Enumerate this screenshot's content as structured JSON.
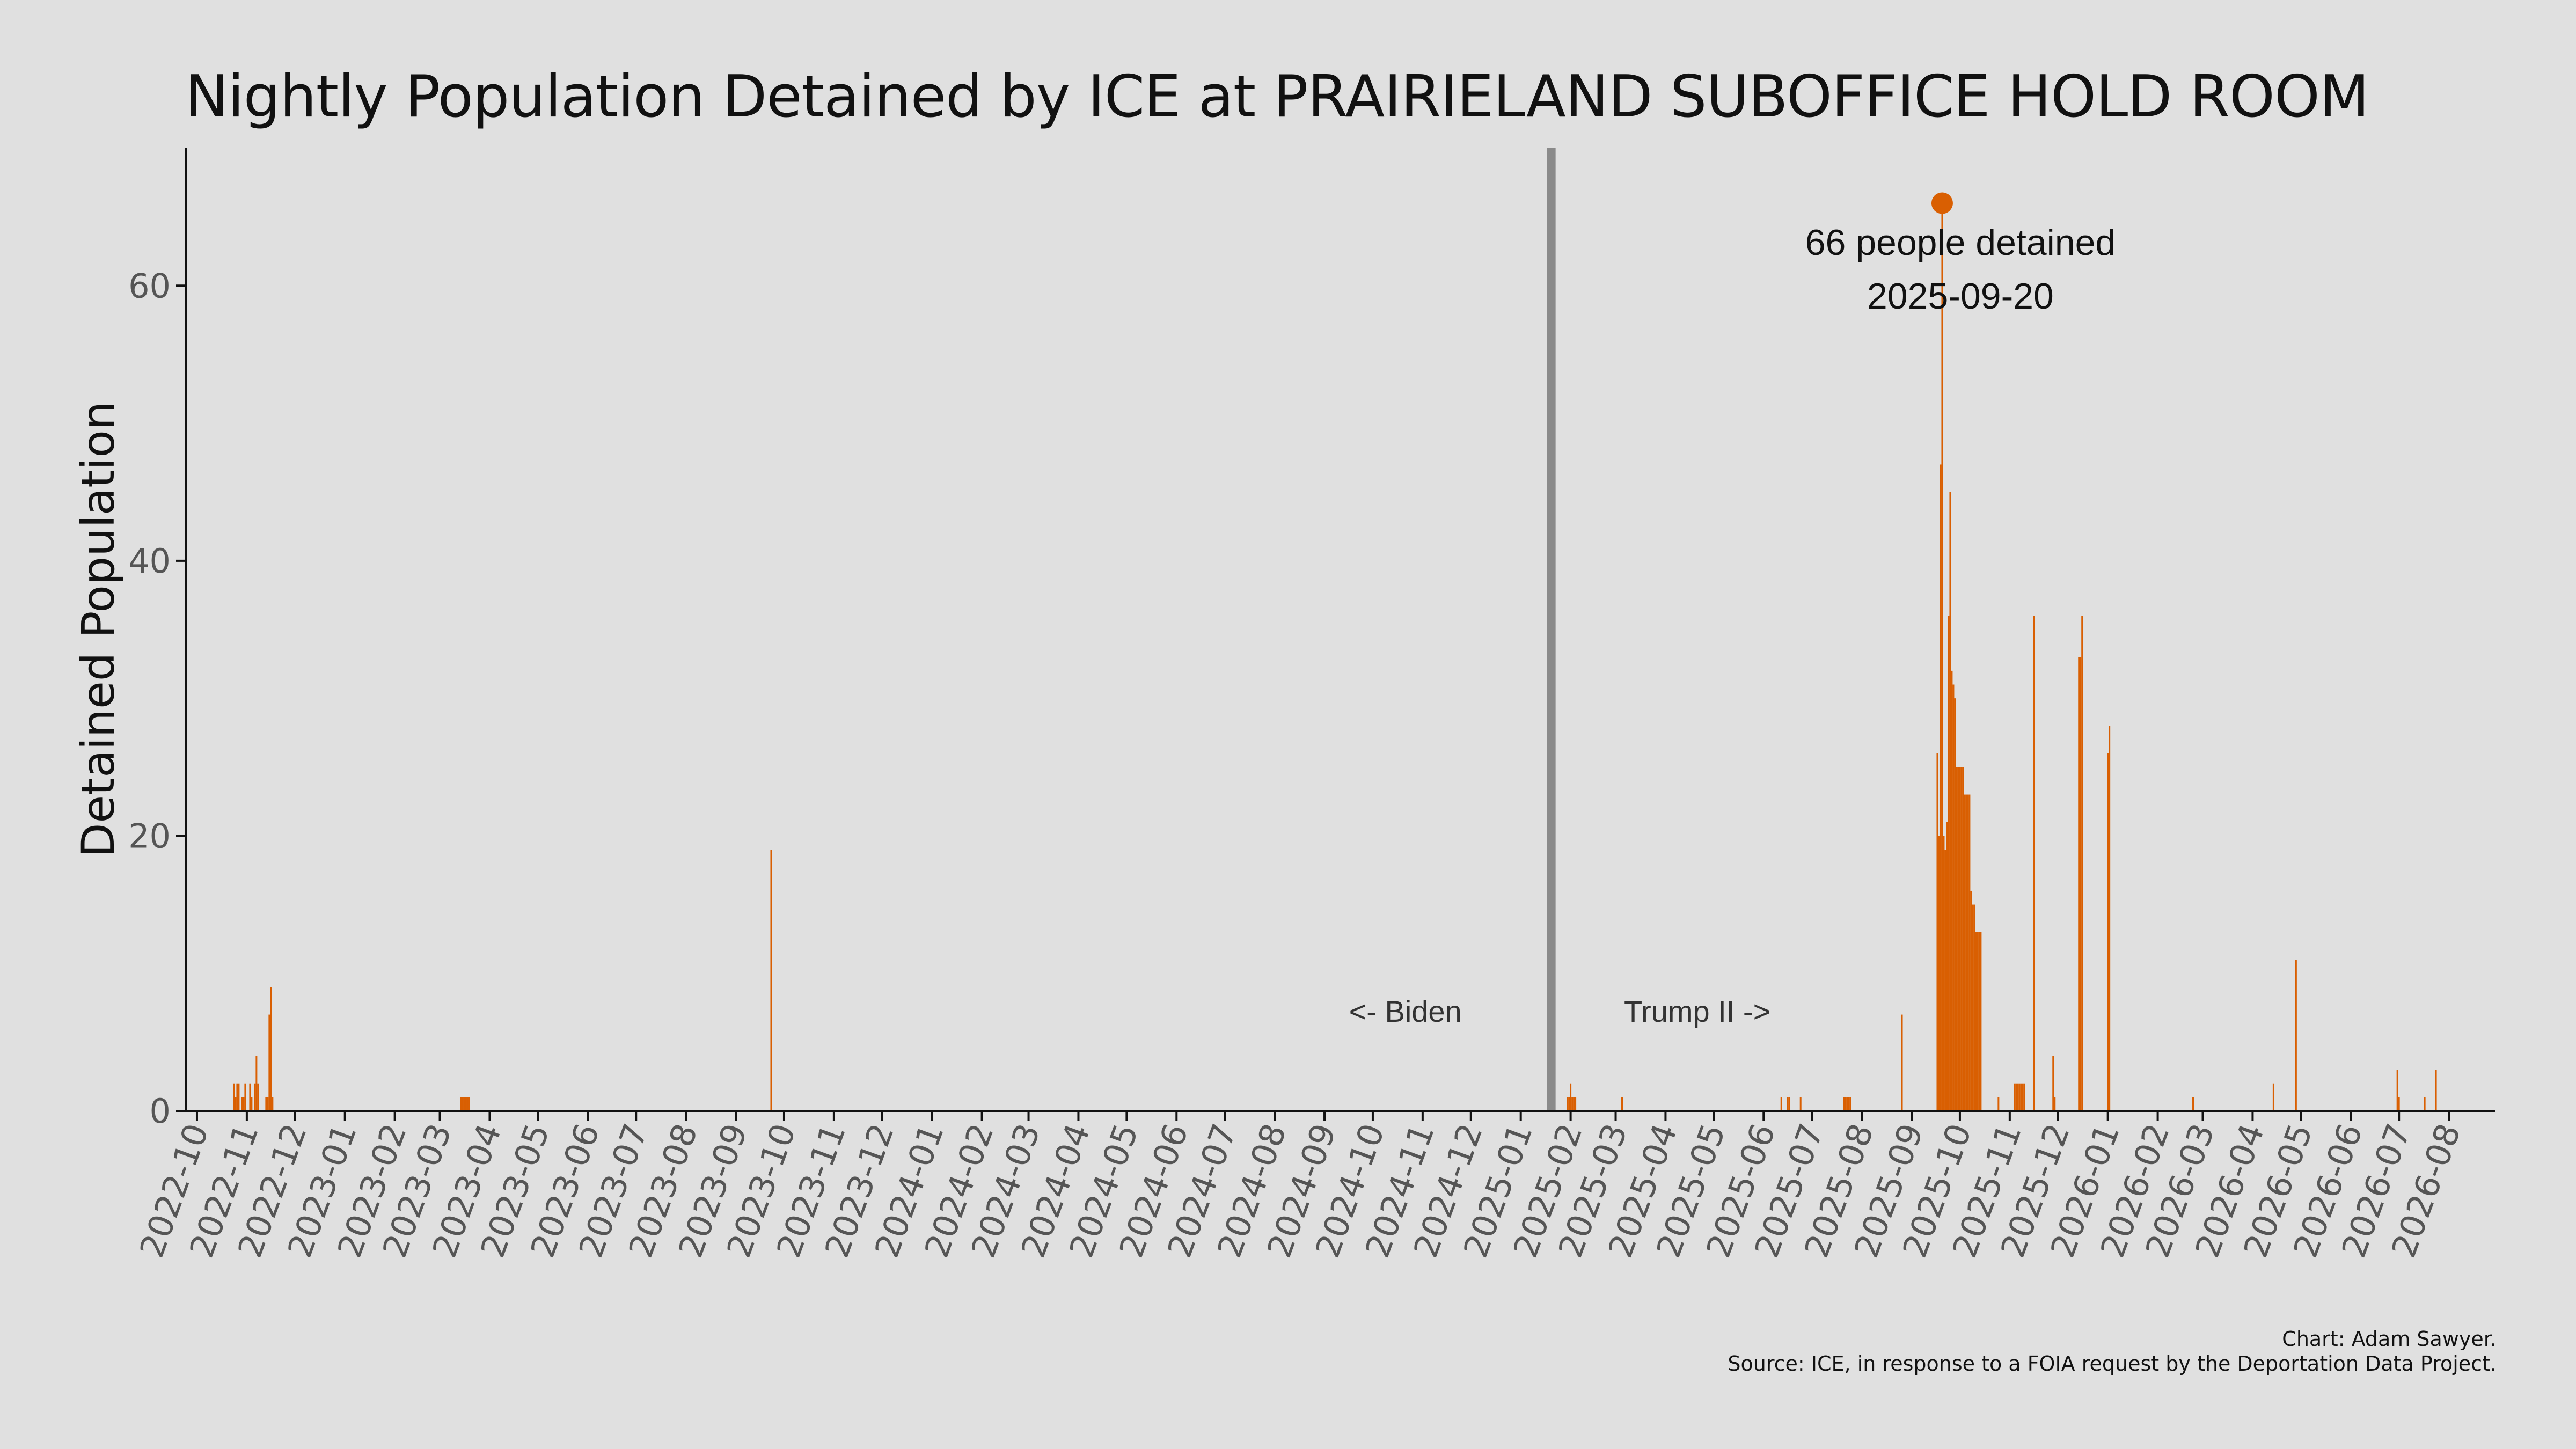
{
  "chart_data": {
    "type": "bar",
    "title": "Nightly Population Detained by ICE at PRAIRIELAND SUBOFFICE HOLD ROOM",
    "xlabel": "",
    "ylabel": "Detained Population",
    "ylim": [
      0,
      70
    ],
    "y_ticks": [
      0,
      20,
      40,
      60
    ],
    "x_range": [
      "2022-09-24",
      "2026-08-30"
    ],
    "x_ticks": [
      "2022-10",
      "2022-11",
      "2022-12",
      "2023-01",
      "2023-02",
      "2023-03",
      "2023-04",
      "2023-05",
      "2023-06",
      "2023-07",
      "2023-08",
      "2023-09",
      "2023-10",
      "2023-11",
      "2023-12",
      "2024-01",
      "2024-02",
      "2024-03",
      "2024-04",
      "2024-05",
      "2024-06",
      "2024-07",
      "2024-08",
      "2024-09",
      "2024-10",
      "2024-11",
      "2024-12",
      "2025-01",
      "2025-02",
      "2025-03",
      "2025-04",
      "2025-05",
      "2025-06",
      "2025-07",
      "2025-08",
      "2025-09",
      "2025-10",
      "2025-11",
      "2025-12",
      "2026-01",
      "2026-02",
      "2026-03",
      "2026-04",
      "2026-05",
      "2026-06",
      "2026-07",
      "2026-08"
    ],
    "grid": false,
    "bar_color": "#d95f02",
    "divider": {
      "date": "2025-01-20",
      "color": "#8a8a8a"
    },
    "era_labels": {
      "left": "<- Biden",
      "right": "Trump II ->"
    },
    "peak": {
      "date": "2025-09-20",
      "value": 66,
      "label_line1": "66 people detained",
      "label_line2": "2025-09-20"
    },
    "series": [
      {
        "points": [
          [
            "2022-10-24",
            2
          ],
          [
            "2022-10-25",
            1
          ],
          [
            "2022-10-26",
            2
          ],
          [
            "2022-10-27",
            2
          ],
          [
            "2022-10-29",
            1
          ],
          [
            "2022-10-30",
            1
          ],
          [
            "2022-10-31",
            2
          ],
          [
            "2022-11-03",
            2
          ],
          [
            "2022-11-04",
            1
          ],
          [
            "2022-11-06",
            2
          ],
          [
            "2022-11-07",
            4
          ],
          [
            "2022-11-08",
            2
          ],
          [
            "2022-11-13",
            1
          ],
          [
            "2022-11-14",
            1
          ],
          [
            "2022-11-15",
            7
          ],
          [
            "2022-11-16",
            9
          ],
          [
            "2022-11-17",
            1
          ],
          [
            "2023-03-14",
            1
          ],
          [
            "2023-03-15",
            1
          ],
          [
            "2023-03-16",
            1
          ],
          [
            "2023-03-17",
            1
          ],
          [
            "2023-03-18",
            1
          ],
          [
            "2023-03-19",
            1
          ],
          [
            "2023-09-23",
            19
          ],
          [
            "2025-01-30",
            1
          ],
          [
            "2025-01-31",
            1
          ],
          [
            "2025-02-01",
            2
          ],
          [
            "2025-02-02",
            1
          ],
          [
            "2025-02-03",
            1
          ],
          [
            "2025-02-04",
            1
          ],
          [
            "2025-03-05",
            1
          ],
          [
            "2025-06-12",
            1
          ],
          [
            "2025-06-16",
            1
          ],
          [
            "2025-06-17",
            1
          ],
          [
            "2025-06-24",
            1
          ],
          [
            "2025-07-21",
            1
          ],
          [
            "2025-07-22",
            1
          ],
          [
            "2025-07-23",
            1
          ],
          [
            "2025-07-24",
            1
          ],
          [
            "2025-07-25",
            1
          ],
          [
            "2025-08-26",
            7
          ],
          [
            "2025-09-17",
            26
          ],
          [
            "2025-09-18",
            20
          ],
          [
            "2025-09-19",
            47
          ],
          [
            "2025-09-20",
            66
          ],
          [
            "2025-09-21",
            20
          ],
          [
            "2025-09-22",
            19
          ],
          [
            "2025-09-23",
            21
          ],
          [
            "2025-09-24",
            36
          ],
          [
            "2025-09-25",
            45
          ],
          [
            "2025-09-26",
            32
          ],
          [
            "2025-09-27",
            31
          ],
          [
            "2025-09-28",
            30
          ],
          [
            "2025-09-29",
            25
          ],
          [
            "2025-09-30",
            25
          ],
          [
            "2025-10-01",
            25
          ],
          [
            "2025-10-02",
            25
          ],
          [
            "2025-10-03",
            25
          ],
          [
            "2025-10-04",
            23
          ],
          [
            "2025-10-05",
            23
          ],
          [
            "2025-10-06",
            23
          ],
          [
            "2025-10-07",
            23
          ],
          [
            "2025-10-08",
            16
          ],
          [
            "2025-10-09",
            15
          ],
          [
            "2025-10-10",
            15
          ],
          [
            "2025-10-11",
            13
          ],
          [
            "2025-10-12",
            13
          ],
          [
            "2025-10-13",
            13
          ],
          [
            "2025-10-14",
            13
          ],
          [
            "2025-10-25",
            1
          ],
          [
            "2025-11-04",
            2
          ],
          [
            "2025-11-05",
            2
          ],
          [
            "2025-11-06",
            2
          ],
          [
            "2025-11-07",
            2
          ],
          [
            "2025-11-08",
            2
          ],
          [
            "2025-11-09",
            2
          ],
          [
            "2025-11-10",
            2
          ],
          [
            "2025-11-16",
            36
          ],
          [
            "2025-11-28",
            4
          ],
          [
            "2025-11-29",
            1
          ],
          [
            "2025-12-14",
            33
          ],
          [
            "2025-12-15",
            33
          ],
          [
            "2025-12-16",
            36
          ],
          [
            "2026-01-01",
            26
          ],
          [
            "2026-01-02",
            28
          ],
          [
            "2026-02-23",
            1
          ],
          [
            "2026-04-14",
            2
          ],
          [
            "2026-04-28",
            11
          ],
          [
            "2026-06-30",
            3
          ],
          [
            "2026-07-01",
            1
          ],
          [
            "2026-07-17",
            1
          ],
          [
            "2026-07-24",
            3
          ]
        ]
      }
    ]
  },
  "credit": {
    "line1": "Chart: Adam Sawyer.",
    "line2": "Source: ICE, in response to a FOIA request by the Deportation Data Project."
  }
}
